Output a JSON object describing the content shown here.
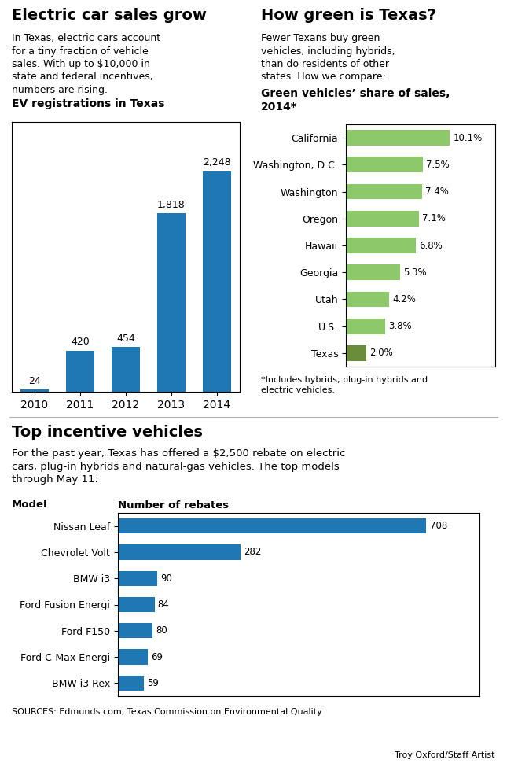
{
  "chart_data": [
    {
      "type": "bar",
      "title": "Electric car sales grow",
      "subtitle": "EV registrations in Texas",
      "annotations": [
        "In Texas, electric cars account\nfor a tiny fraction of vehicle\nsales. With up to $10,000 in\nstate and federal incentives,\nnumbers are rising."
      ],
      "categories": [
        "2010",
        "2011",
        "2012",
        "2013",
        "2014"
      ],
      "values": [
        24,
        420,
        454,
        1818,
        2248
      ],
      "value_labels": [
        "24",
        "420",
        "454",
        "1,818",
        "2,248"
      ],
      "data_labels": true,
      "ylim": [
        0,
        2750
      ],
      "tick_labels": "x",
      "grid": false
    },
    {
      "type": "bar",
      "orientation": "horizontal",
      "title": "How green is Texas?",
      "subtitle": "Green vehicles’ share of sales,\n2014*",
      "annotations": [
        "Fewer Texans buy green\nvehicles, including hybrids,\nthan do residents of other\nstates. How we compare:",
        "*Includes hybrids, plug-in hybrids and\nelectric vehicles."
      ],
      "categories": [
        "California",
        "Washington, D.C.",
        "Washington",
        "Oregon",
        "Hawaii",
        "Georgia",
        "Utah",
        "U.S.",
        "Texas"
      ],
      "values": [
        10.1,
        7.5,
        7.4,
        7.1,
        6.8,
        5.3,
        4.2,
        3.8,
        2.0
      ],
      "value_labels": [
        "10.1%",
        "7.5%",
        "7.4%",
        "7.1%",
        "6.8%",
        "5.3%",
        "4.2%",
        "3.8%",
        "2.0%"
      ],
      "colors": [
        "#8dc86a",
        "#8dc86a",
        "#8dc86a",
        "#8dc86a",
        "#8dc86a",
        "#8dc86a",
        "#8dc86a",
        "#8dc86a",
        "#6b8c3a"
      ],
      "data_labels": true,
      "xlim": [
        0,
        14.5
      ],
      "tick_labels": "y",
      "grid": false
    },
    {
      "type": "bar",
      "orientation": "horizontal",
      "title": "Top incentive vehicles",
      "annotations": [
        "For the past year, Texas has offered a $2,500 rebate on electric\ncars, plug-in hybrids and natural-gas vehicles. The top models\nthrough May 11:",
        "SOURCES: Edmunds.com; Texas Commission on Environmental Quality",
        "Troy Oxford/Staff Artist"
      ],
      "ylabel": "Model",
      "xlabel": "Number of rebates",
      "categories": [
        "Nissan Leaf",
        "Chevrolet Volt",
        "BMW i3",
        "Ford Fusion Energi",
        "Ford F150",
        "Ford C-Max Energi",
        "BMW i3 Rex"
      ],
      "values": [
        708,
        282,
        90,
        84,
        80,
        69,
        59
      ],
      "data_labels": true,
      "xlim": [
        0,
        830
      ],
      "tick_labels": "y",
      "grid": false
    }
  ]
}
